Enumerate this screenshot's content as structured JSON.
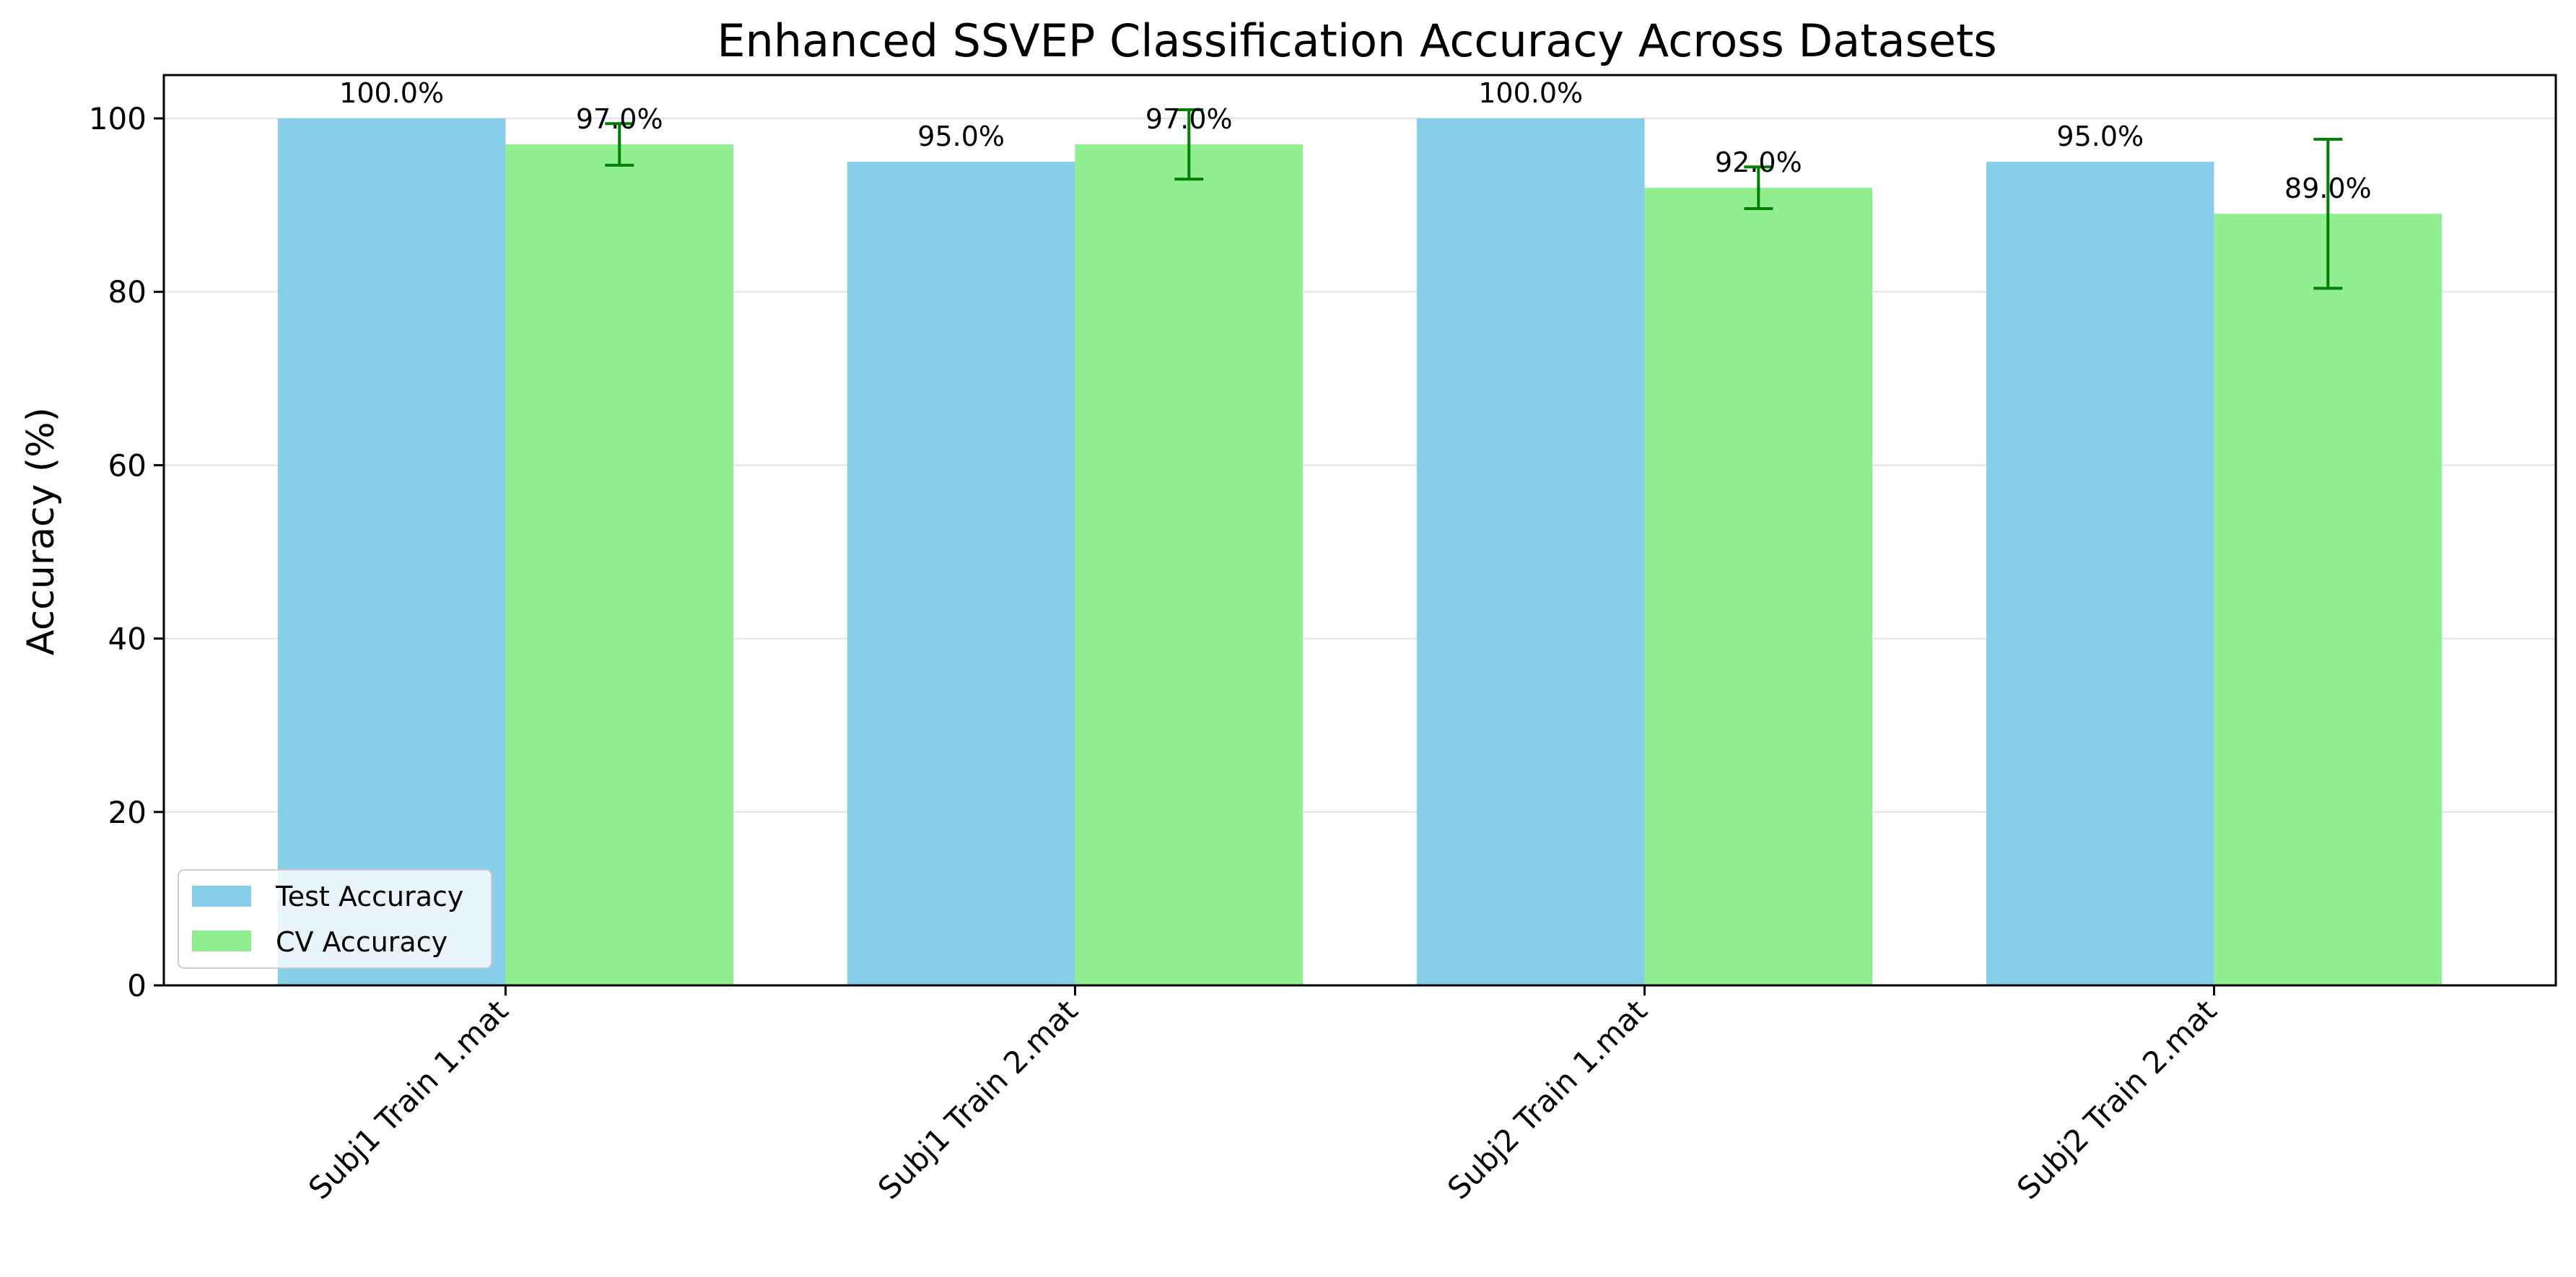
{
  "chart_data": {
    "type": "bar",
    "title": "Enhanced SSVEP Classification Accuracy Across Datasets",
    "xlabel": "",
    "ylabel": "Accuracy (%)",
    "ylim": [
      0,
      105
    ],
    "yticks": [
      0,
      20,
      40,
      60,
      80,
      100
    ],
    "grid": "y",
    "legend_position": "lower-left",
    "categories": [
      "Subj1 Train 1.mat",
      "Subj1 Train 2.mat",
      "Subj2 Train 1.mat",
      "Subj2 Train 2.mat"
    ],
    "series": [
      {
        "name": "Test Accuracy",
        "color": "#87CEEB",
        "values": [
          100.0,
          95.0,
          100.0,
          95.0
        ],
        "labels": [
          "100.0%",
          "95.0%",
          "100.0%",
          "95.0%"
        ]
      },
      {
        "name": "CV Accuracy",
        "color": "#90EE90",
        "values": [
          97.0,
          97.0,
          92.0,
          89.0
        ],
        "labels": [
          "97.0%",
          "97.0%",
          "92.0%",
          "89.0%"
        ],
        "error": [
          2.4,
          4.0,
          2.4,
          8.6
        ],
        "error_color": "#008000"
      }
    ]
  }
}
